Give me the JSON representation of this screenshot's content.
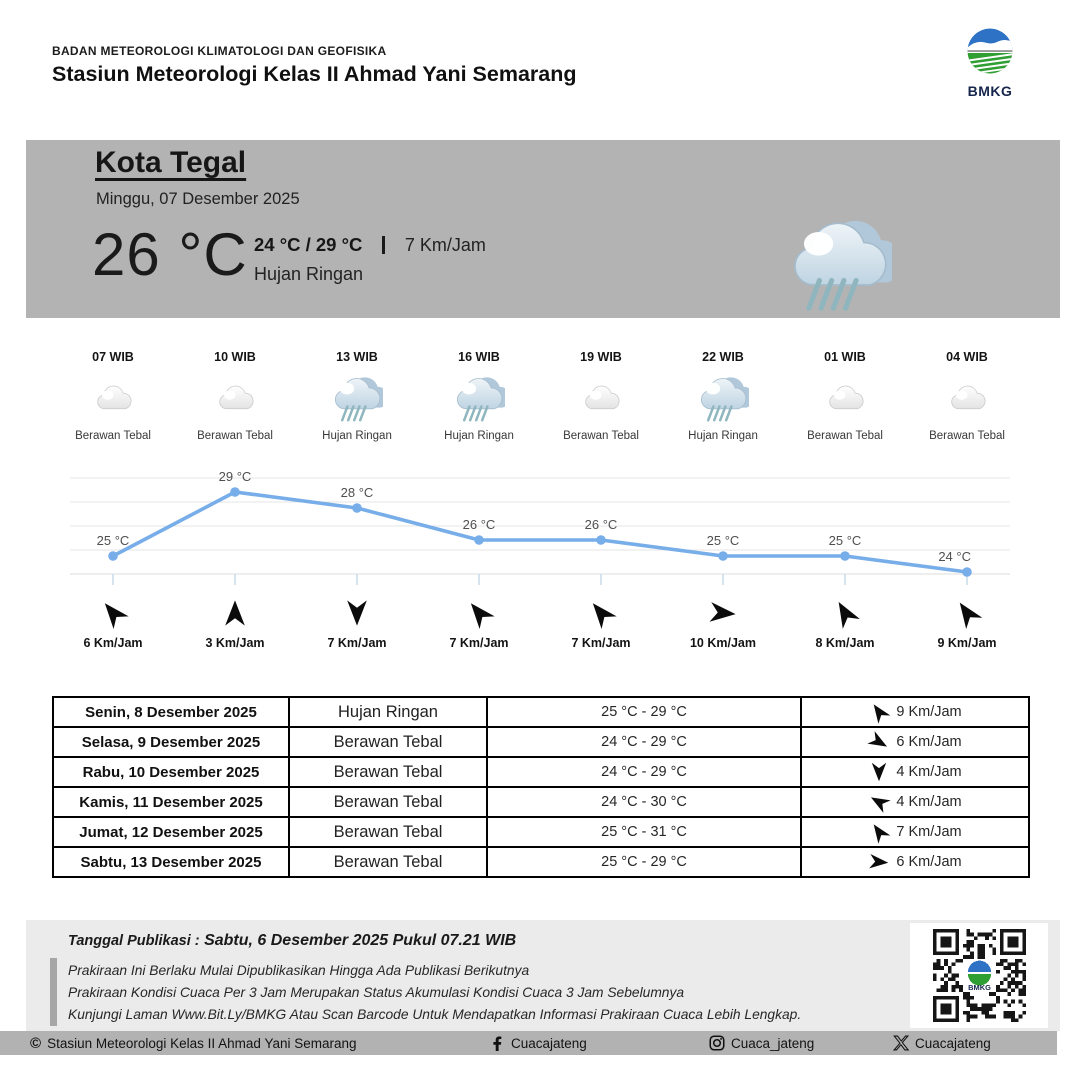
{
  "header": {
    "agency": "BADAN METEOROLOGI KLIMATOLOGI DAN GEOFISIKA",
    "station": "Stasiun Meteorologi Kelas II Ahmad Yani Semarang",
    "logo_label": "BMKG"
  },
  "current": {
    "city": "Kota Tegal",
    "date": "Minggu, 07 Desember 2025",
    "temperature": "26 °C",
    "temp_range": "24 °C / 29 °C",
    "wind_speed": "7 Km/Jam",
    "condition": "Hujan Ringan",
    "icon": "hujan-ringan"
  },
  "hourly": [
    {
      "time": "07 WIB",
      "icon": "cloud",
      "label": "Berawan Tebal"
    },
    {
      "time": "10 WIB",
      "icon": "cloud",
      "label": "Berawan Tebal"
    },
    {
      "time": "13 WIB",
      "icon": "rain",
      "label": "Hujan Ringan"
    },
    {
      "time": "16 WIB",
      "icon": "rain",
      "label": "Hujan Ringan"
    },
    {
      "time": "19 WIB",
      "icon": "cloud",
      "label": "Berawan Tebal"
    },
    {
      "time": "22 WIB",
      "icon": "rain",
      "label": "Hujan Ringan"
    },
    {
      "time": "01 WIB",
      "icon": "cloud",
      "label": "Berawan Tebal"
    },
    {
      "time": "04 WIB",
      "icon": "cloud",
      "label": "Berawan Tebal"
    }
  ],
  "chart_data": {
    "type": "line",
    "x": [
      "07 WIB",
      "10 WIB",
      "13 WIB",
      "16 WIB",
      "19 WIB",
      "22 WIB",
      "01 WIB",
      "04 WIB"
    ],
    "values": [
      25,
      29,
      28,
      26,
      26,
      25,
      25,
      24
    ],
    "unit": "°C",
    "title": "",
    "xlabel": "",
    "ylabel": "",
    "ylim": [
      23.5,
      30
    ],
    "grid": true,
    "legend": false,
    "line_color": "#77ade8",
    "label_color": "#4f4f4f"
  },
  "wind_row": [
    {
      "speed": "6 Km/Jam",
      "direction_deg": -40
    },
    {
      "speed": "3 Km/Jam",
      "direction_deg": 0
    },
    {
      "speed": "7 Km/Jam",
      "direction_deg": 180
    },
    {
      "speed": "7 Km/Jam",
      "direction_deg": -40
    },
    {
      "speed": "7 Km/Jam",
      "direction_deg": -40
    },
    {
      "speed": "10 Km/Jam",
      "direction_deg": 95
    },
    {
      "speed": "8 Km/Jam",
      "direction_deg": -30
    },
    {
      "speed": "9 Km/Jam",
      "direction_deg": -35
    }
  ],
  "daily_table": [
    {
      "date": "Senin, 8 Desember 2025",
      "condition": "Hujan Ringan",
      "range": "25 °C - 29 °C",
      "wind": "9 Km/Jam",
      "direction_deg": -35
    },
    {
      "date": "Selasa, 9 Desember 2025",
      "condition": "Berawan Tebal",
      "range": "24 °C - 29 °C",
      "wind": "6 Km/Jam",
      "direction_deg": 120
    },
    {
      "date": "Rabu, 10 Desember 2025",
      "condition": "Berawan Tebal",
      "range": "24 °C - 29 °C",
      "wind": "4 Km/Jam",
      "direction_deg": 180
    },
    {
      "date": "Kamis, 11 Desember 2025",
      "condition": "Berawan Tebal",
      "range": "24 °C - 30 °C",
      "wind": "4 Km/Jam",
      "direction_deg": -60
    },
    {
      "date": "Jumat, 12 Desember 2025",
      "condition": "Berawan Tebal",
      "range": "25 °C - 31 °C",
      "wind": "7 Km/Jam",
      "direction_deg": -35
    },
    {
      "date": "Sabtu, 13 Desember 2025",
      "condition": "Berawan Tebal",
      "range": "25 °C - 29 °C",
      "wind": "6 Km/Jam",
      "direction_deg": 95
    }
  ],
  "footer": {
    "publication_label": "Tanggal Publikasi :",
    "publication_value": "Sabtu, 6 Desember 2025 Pukul 07.21 WIB",
    "notes": [
      "Prakiraan Ini Berlaku Mulai Dipublikasikan Hingga Ada Publikasi Berikutnya",
      "Prakiraan Kondisi Cuaca Per 3 Jam Merupakan Status Akumulasi Kondisi Cuaca 3 Jam Sebelumnya",
      "Kunjungi Laman Www.Bit.Ly/BMKG Atau Scan Barcode Untuk Mendapatkan Informasi Prakiraan Cuaca Lebih Lengkap."
    ],
    "qr_label": "BMKG"
  },
  "bottom_bar": {
    "copyright_text": "Stasiun Meteorologi Kelas II Ahmad Yani Semarang",
    "facebook_handle": "Cuacajateng",
    "instagram_handle": "Cuaca_jateng",
    "x_handle": "Cuacajateng"
  },
  "colors": {
    "banner_bg": "#b3b3b3",
    "footer_bg": "#ebebeb",
    "bottom_bar_bg": "#b2b2b2",
    "chart_line": "#77ade8",
    "logo_blue": "#2d72c5",
    "logo_green": "#2f9e33",
    "logo_navy": "#16264d"
  }
}
